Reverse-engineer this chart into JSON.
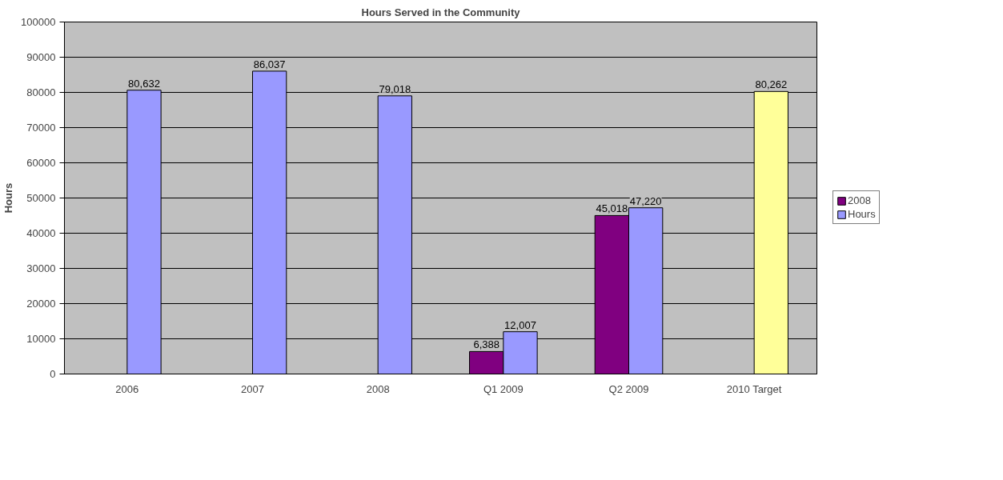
{
  "chart_data": {
    "type": "bar",
    "title": "Hours Served in the Community",
    "ylabel": "Hours",
    "categories": [
      "2006",
      "2007",
      "2008",
      "Q1 2009",
      "Q2 2009",
      "2010 Target"
    ],
    "series": [
      {
        "name": "2008",
        "color": "#800080",
        "values": [
          null,
          null,
          null,
          6388,
          45018,
          null
        ],
        "value_labels": [
          null,
          null,
          null,
          "6,388",
          "45,018",
          null
        ]
      },
      {
        "name": "Hours",
        "color": "#9999ff",
        "colors": [
          "#9999ff",
          "#9999ff",
          "#9999ff",
          "#9999ff",
          "#9999ff",
          "#ffff99"
        ],
        "values": [
          80632,
          86037,
          79018,
          12007,
          47220,
          80262
        ],
        "value_labels": [
          "80,632",
          "86,037",
          "79,018",
          "12,007",
          "47,220",
          "80,262"
        ]
      }
    ],
    "ylim": [
      0,
      100000
    ],
    "yticks": [
      0,
      10000,
      20000,
      30000,
      40000,
      50000,
      60000,
      70000,
      80000,
      90000,
      100000
    ],
    "grid": "y",
    "legend": "right"
  }
}
